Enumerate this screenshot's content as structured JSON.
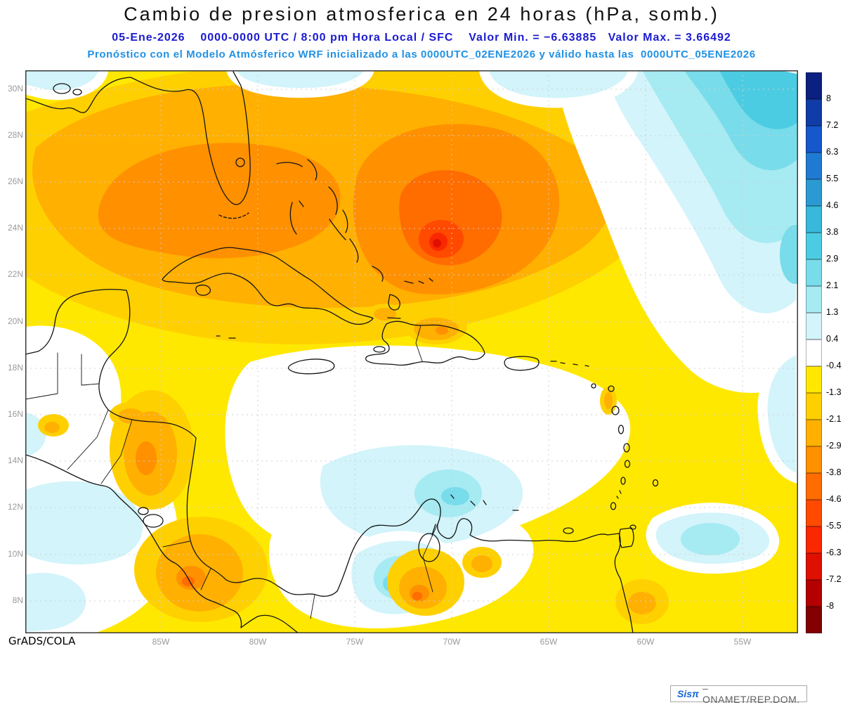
{
  "header": {
    "title": "Cambio de presion atmosferica en 24 horas (hPa, somb.)",
    "line2": "05-Ene-2026    0000-0000 UTC / 8:00 pm Hora Local / SFC    Valor Min. = −6.63885   Valor Max. = 3.66492",
    "line3": "Pronóstico con el Modelo Atmósferico WRF inicializado a las 0000UTC_02ENE2026 y válido hasta las  0000UTC_05ENE2026"
  },
  "axes": {
    "lat": [
      "30N",
      "28N",
      "26N",
      "24N",
      "22N",
      "20N",
      "18N",
      "16N",
      "14N",
      "12N",
      "10N",
      "8N"
    ],
    "lon": [
      "85W",
      "80W",
      "75W",
      "70W",
      "65W",
      "60W",
      "55W"
    ]
  },
  "colorbar": {
    "labels": [
      "8",
      "7.2",
      "6.3",
      "5.5",
      "4.6",
      "3.8",
      "2.9",
      "2.1",
      "1.3",
      "0.4",
      "-0.4",
      "-1.3",
      "-2.1",
      "-2.9",
      "-3.8",
      "-4.6",
      "-5.5",
      "-6.3",
      "-7.2",
      "-8"
    ],
    "colors": [
      "#0b2080",
      "#103ca8",
      "#1658cc",
      "#1f7ad2",
      "#2b9ad2",
      "#38b8da",
      "#4ccce2",
      "#78dcea",
      "#a6eaf2",
      "#d2f4fa",
      "#ffffff",
      "#ffe800",
      "#ffd000",
      "#ffb000",
      "#ff9000",
      "#ff6c00",
      "#ff4a00",
      "#fa2800",
      "#e01000",
      "#b40000",
      "#820000"
    ]
  },
  "footer": {
    "credit": "GrADS/COLA"
  },
  "watermark": {
    "brand": "Sisπ",
    "org": "– ONAMET/REP.DOM."
  },
  "chart_data": {
    "type": "heatmap",
    "title": "Cambio de presion atmosferica en 24 horas (hPa, somb.)",
    "variable": "Cambio de presión atmosférica en 24 horas",
    "units": "hPa",
    "level": "SFC",
    "date": "05-Ene-2026",
    "time": "0000-0000 UTC / 8:00 pm Hora Local",
    "model": "WRF",
    "initialized": "0000UTC_02ENE2026",
    "valid_until": "0000UTC_05ENE2026",
    "valor_min": -6.63885,
    "valor_max": 3.66492,
    "lat_ticks_deg_N": [
      30,
      28,
      26,
      24,
      22,
      20,
      18,
      16,
      14,
      12,
      10,
      8
    ],
    "lon_ticks_deg_W": [
      85,
      80,
      75,
      70,
      65,
      60,
      55
    ],
    "contour_levels": [
      8,
      7.2,
      6.3,
      5.5,
      4.6,
      3.8,
      2.9,
      2.1,
      1.3,
      0.4,
      -0.4,
      -1.3,
      -2.1,
      -2.9,
      -3.8,
      -4.6,
      -5.5,
      -6.3,
      -7.2,
      -8
    ],
    "legend_position": "right",
    "grid": true,
    "notes": "Negative change (yellow/orange/red) dominates Gulf of Mexico, Florida, Bahamas and Greater Antilles with minimum near 23N 71W; positive change (cyan/blue) over NE Atlantic corner and southern Caribbean coast."
  }
}
